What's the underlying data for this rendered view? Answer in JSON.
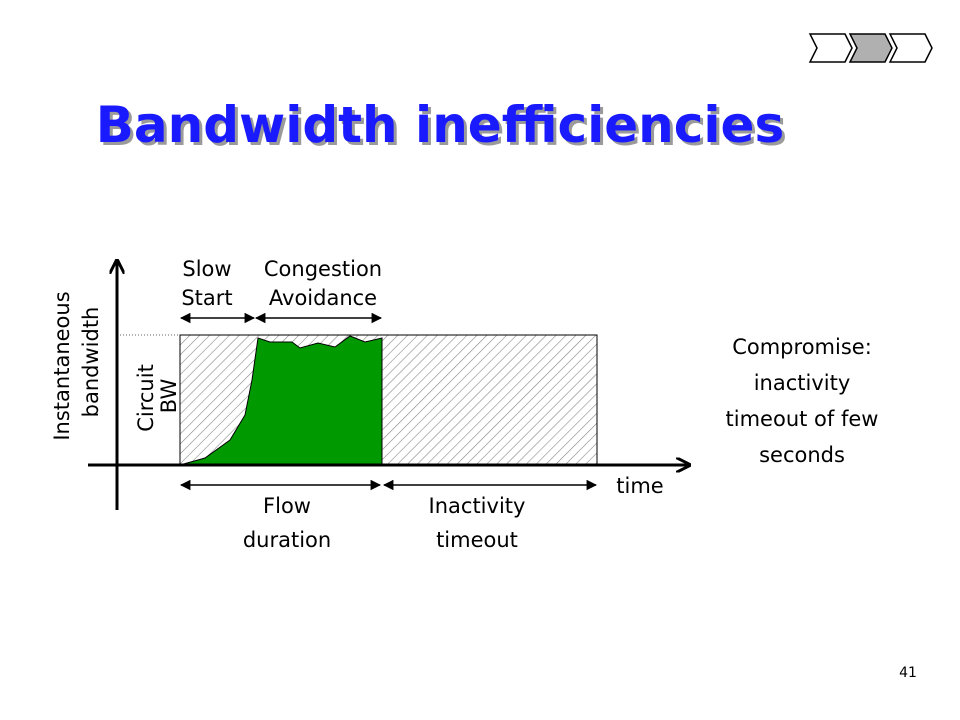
{
  "header": {
    "title": "Bandwidth inefficiencies"
  },
  "diagram": {
    "y_axis_label": [
      "Instantaneous",
      "bandwidth"
    ],
    "x_axis_label": "time",
    "circuit_label": [
      "Circuit",
      "BW"
    ],
    "slow_start": [
      "Slow",
      "Start"
    ],
    "congestion_avoidance": [
      "Congestion",
      "Avoidance"
    ],
    "flow_duration": [
      "Flow",
      "duration"
    ],
    "inactivity_timeout": [
      "Inactivity",
      "timeout"
    ]
  },
  "note": [
    "Compromise:",
    "inactivity",
    "timeout of few",
    "seconds"
  ],
  "page_number": "41"
}
